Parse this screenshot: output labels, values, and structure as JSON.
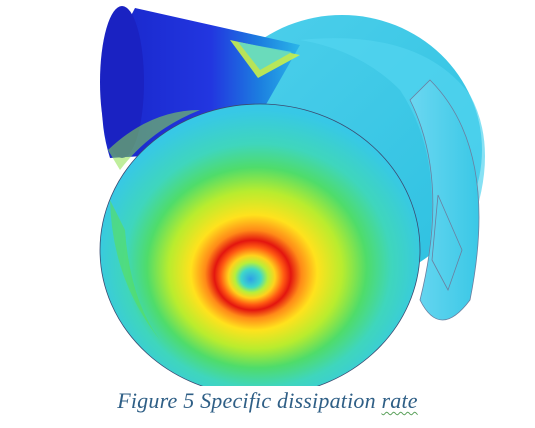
{
  "figure": {
    "caption": {
      "prefix": "Figure 5 Specific dissipation ",
      "flagged_word": "rate"
    },
    "colors": {
      "caption_text": "#2f5f86",
      "outlet_pipe": "#1f2fd6",
      "contour_low": "#2ec4e8",
      "contour_mid": "#8be04a",
      "contour_high": "#e01a12"
    }
  }
}
